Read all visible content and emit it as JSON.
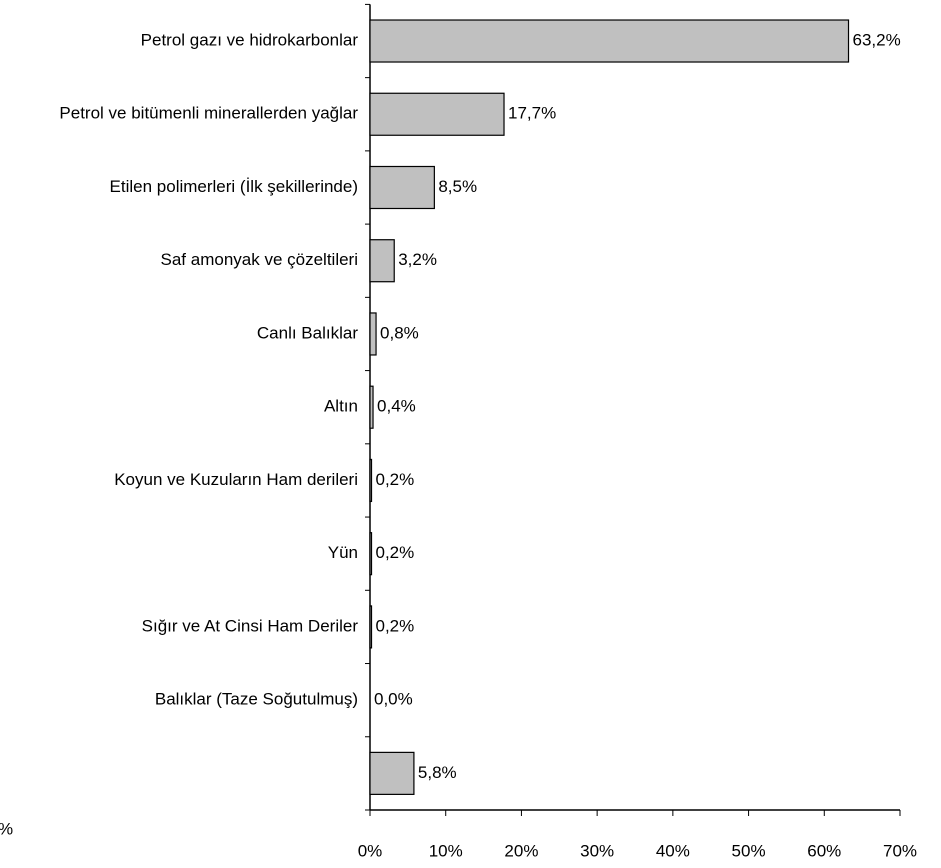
{
  "chart_data": {
    "type": "bar",
    "orientation": "horizontal",
    "categories": [
      "Petrol gazı ve hidrokarbonlar",
      "Petrol ve bitümenli minerallerden yağlar",
      "Etilen polimerleri (İlk şekillerinde)",
      "Saf amonyak ve çözeltileri",
      "Canlı Balıklar",
      "Altın",
      "Koyun ve Kuzuların Ham derileri",
      "Yün",
      "Sığır ve At Cinsi Ham Deriler",
      "Balıklar (Taze Soğutulmuş)",
      null
    ],
    "values": [
      63.2,
      17.7,
      8.5,
      3.2,
      0.8,
      0.4,
      0.2,
      0.2,
      0.2,
      0.0,
      5.8
    ],
    "value_labels": [
      "63,2%",
      "17,7%",
      "8,5%",
      "3,2%",
      "0,8%",
      "0,4%",
      "0,2%",
      "0,2%",
      "0,2%",
      "0,0%",
      "5,8%"
    ],
    "color": "#c0c0c0",
    "xlim": [
      0,
      70
    ],
    "xticks": [
      {
        "value": 0,
        "label": "0%"
      },
      {
        "value": 10,
        "label": "10%"
      },
      {
        "value": 20,
        "label": "20%"
      },
      {
        "value": 30,
        "label": "30%"
      },
      {
        "value": 40,
        "label": "40%"
      },
      {
        "value": 50,
        "label": "50%"
      },
      {
        "value": 60,
        "label": "60%"
      },
      {
        "value": 70,
        "label": "70%"
      }
    ],
    "annotation": "%"
  }
}
